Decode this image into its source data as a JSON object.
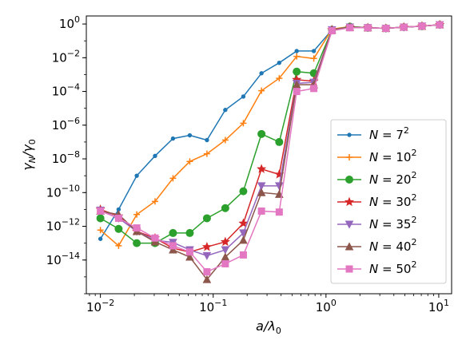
{
  "chart_data": {
    "type": "line",
    "xscale": "log",
    "yscale": "log",
    "xlim": [
      0.0075,
      13
    ],
    "ylim": [
      1e-16,
      3
    ],
    "xlabel": "a/λ0",
    "ylabel": "γN/γ0",
    "grid": false,
    "legend_position": "right",
    "xticks": [
      {
        "value": 0.01,
        "mant": "10",
        "exp": "−2"
      },
      {
        "value": 0.1,
        "mant": "10",
        "exp": "−1"
      },
      {
        "value": 1,
        "mant": "10",
        "exp": "0"
      },
      {
        "value": 10,
        "mant": "10",
        "exp": "1"
      }
    ],
    "yticks": [
      {
        "value": 1,
        "mant": "10",
        "exp": "0"
      },
      {
        "value": 0.01,
        "mant": "10",
        "exp": "−2"
      },
      {
        "value": 0.0001,
        "mant": "10",
        "exp": "−4"
      },
      {
        "value": 1e-06,
        "mant": "10",
        "exp": "−6"
      },
      {
        "value": 1e-08,
        "mant": "10",
        "exp": "−8"
      },
      {
        "value": 1e-10,
        "mant": "10",
        "exp": "−10"
      },
      {
        "value": 1e-12,
        "mant": "10",
        "exp": "−12"
      },
      {
        "value": 1e-14,
        "mant": "10",
        "exp": "−14"
      }
    ],
    "x": [
      0.01,
      0.0145,
      0.021,
      0.0305,
      0.044,
      0.062,
      0.088,
      0.128,
      0.185,
      0.268,
      0.385,
      0.55,
      0.78,
      1.13,
      1.63,
      2.35,
      3.4,
      4.9,
      7.1,
      10.2
    ],
    "series": [
      {
        "name": "N = 7^2",
        "label_base": "N = 7",
        "label_exp": "2",
        "color": "#1f77b4",
        "marker": "point",
        "values": [
          1.8e-13,
          1e-11,
          1e-09,
          1.5e-08,
          1.6e-07,
          2.5e-07,
          1.3e-07,
          8e-06,
          5e-05,
          0.0012,
          0.005,
          0.025,
          0.025,
          0.45,
          0.7,
          0.6,
          0.55,
          0.65,
          0.75,
          0.9
        ]
      },
      {
        "name": "N = 10^2",
        "label_base": "N = 10",
        "label_exp": "2",
        "color": "#ff7f0e",
        "marker": "plus",
        "values": [
          6e-13,
          7e-14,
          5e-12,
          3e-11,
          7e-10,
          7e-09,
          2e-08,
          1.3e-07,
          1.3e-06,
          0.00011,
          0.0006,
          0.012,
          0.009,
          0.5,
          0.7,
          0.6,
          0.55,
          0.65,
          0.75,
          0.9
        ]
      },
      {
        "name": "N = 20^2",
        "label_base": "N = 20",
        "label_exp": "2",
        "color": "#2ca02c",
        "marker": "circle",
        "values": [
          3e-12,
          7e-13,
          1e-13,
          1e-13,
          4e-13,
          4e-13,
          3e-12,
          1.2e-11,
          1.2e-10,
          3e-07,
          1e-07,
          0.0015,
          0.0012,
          0.45,
          0.7,
          0.6,
          0.55,
          0.65,
          0.75,
          0.9
        ]
      },
      {
        "name": "N = 30^2",
        "label_base": "N = 30",
        "label_exp": "2",
        "color": "#d62728",
        "marker": "star",
        "values": [
          1e-11,
          4e-12,
          5e-13,
          2e-13,
          5e-14,
          3e-14,
          6e-14,
          1.2e-13,
          1.5e-12,
          2.5e-09,
          1.2e-09,
          0.0005,
          0.0004,
          0.45,
          0.65,
          0.6,
          0.55,
          0.65,
          0.75,
          0.9
        ]
      },
      {
        "name": "N = 35^2",
        "label_base": "N = 35",
        "label_exp": "2",
        "color": "#9467bd",
        "marker": "triangle-down",
        "values": [
          9e-12,
          3e-12,
          5e-13,
          1.5e-13,
          1.1e-13,
          4e-14,
          1.8e-14,
          4e-14,
          4e-13,
          2.5e-10,
          2.5e-10,
          0.0003,
          0.00035,
          0.45,
          0.65,
          0.6,
          0.55,
          0.65,
          0.75,
          0.9
        ]
      },
      {
        "name": "N = 40^2",
        "label_base": "N = 40",
        "label_exp": "2",
        "color": "#8c564b",
        "marker": "triangle-up",
        "values": [
          8e-12,
          5e-12,
          5e-13,
          1.2e-13,
          4e-14,
          1.5e-14,
          7e-16,
          1.5e-14,
          1.5e-13,
          1e-10,
          8e-11,
          0.00025,
          0.00025,
          0.45,
          0.65,
          0.6,
          0.55,
          0.65,
          0.75,
          0.9
        ]
      },
      {
        "name": "N = 50^2",
        "label_base": "N = 50",
        "label_exp": "2",
        "color": "#e377c2",
        "marker": "square",
        "values": [
          8e-12,
          3e-12,
          8e-13,
          2e-13,
          7e-14,
          3e-14,
          2e-15,
          6e-15,
          2e-14,
          8e-12,
          7e-12,
          0.0001,
          0.00015,
          0.4,
          0.6,
          0.6,
          0.55,
          0.65,
          0.75,
          0.9
        ]
      }
    ]
  }
}
